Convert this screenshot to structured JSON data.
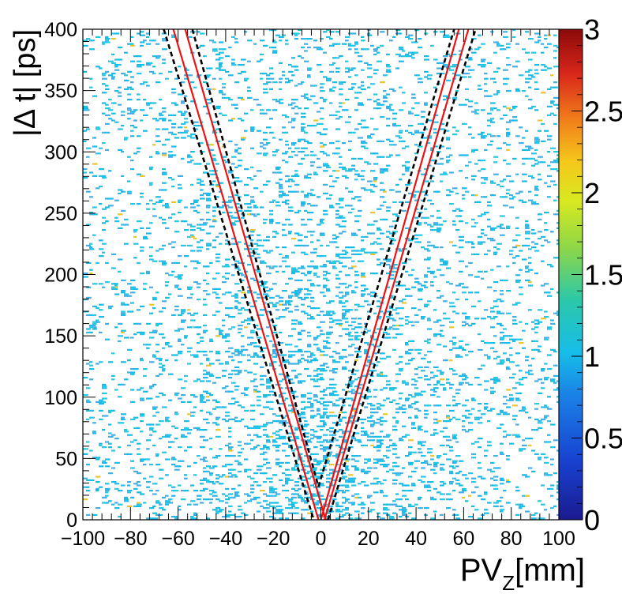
{
  "chart_data": {
    "type": "heatmap",
    "title": "",
    "xlabel_main": "PV",
    "xlabel_sub": "Z",
    "xlabel_unit": "[mm]",
    "ylabel": "|Δ t| [ps]",
    "xlim": [
      -100,
      100
    ],
    "ylim": [
      0,
      400
    ],
    "zlim": [
      0,
      3
    ],
    "x_ticks": [
      -100,
      -80,
      -60,
      -40,
      -20,
      0,
      20,
      40,
      60,
      80,
      100
    ],
    "x_tick_labels": [
      "−100",
      "−80",
      "−60",
      "−40",
      "−20",
      "0",
      "20",
      "40",
      "60",
      "80",
      "100"
    ],
    "y_ticks": [
      0,
      50,
      100,
      150,
      200,
      250,
      300,
      350,
      400
    ],
    "y_tick_labels": [
      "0",
      "50",
      "100",
      "150",
      "200",
      "250",
      "300",
      "350",
      "400"
    ],
    "z_ticks": [
      0,
      0.5,
      1,
      1.5,
      2,
      2.5,
      3
    ],
    "z_tick_labels": [
      "0",
      "0.5",
      "1",
      "1.5",
      "2",
      "2.5",
      "3"
    ],
    "colorscale": "rainbow",
    "density_note": "mostly single counts (z=1), denser toward small |Δt| near PV_Z = 0",
    "overlay_lines": [
      {
        "name": "red-inner-left",
        "color": "#ee1111",
        "style": "solid",
        "points": [
          [
            -62.0,
            400
          ],
          [
            -1.0,
            0
          ]
        ]
      },
      {
        "name": "red-outer-left",
        "color": "#ee1111",
        "style": "solid",
        "points": [
          [
            -57.0,
            400
          ],
          [
            2.0,
            0
          ]
        ]
      },
      {
        "name": "red-inner-right",
        "color": "#ee1111",
        "style": "solid",
        "points": [
          [
            0.0,
            0
          ],
          [
            58.0,
            400
          ]
        ]
      },
      {
        "name": "red-outer-right",
        "color": "#ee1111",
        "style": "solid",
        "points": [
          [
            1.5,
            0
          ],
          [
            62.0,
            400
          ]
        ]
      },
      {
        "name": "black-dash-left-outer",
        "color": "#000000",
        "style": "dashed",
        "points": [
          [
            -66.0,
            400
          ],
          [
            -3.0,
            0
          ]
        ]
      },
      {
        "name": "black-dash-left-inner",
        "color": "#000000",
        "style": "dashed",
        "points": [
          [
            -54.0,
            400
          ],
          [
            -1.0,
            27
          ]
        ]
      },
      {
        "name": "black-dash-right-inner",
        "color": "#000000",
        "style": "dashed",
        "points": [
          [
            -1.0,
            27
          ],
          [
            56.0,
            400
          ]
        ]
      },
      {
        "name": "black-dash-right-outer",
        "color": "#000000",
        "style": "dashed",
        "points": [
          [
            3.0,
            0
          ],
          [
            65.0,
            400
          ]
        ]
      }
    ]
  }
}
